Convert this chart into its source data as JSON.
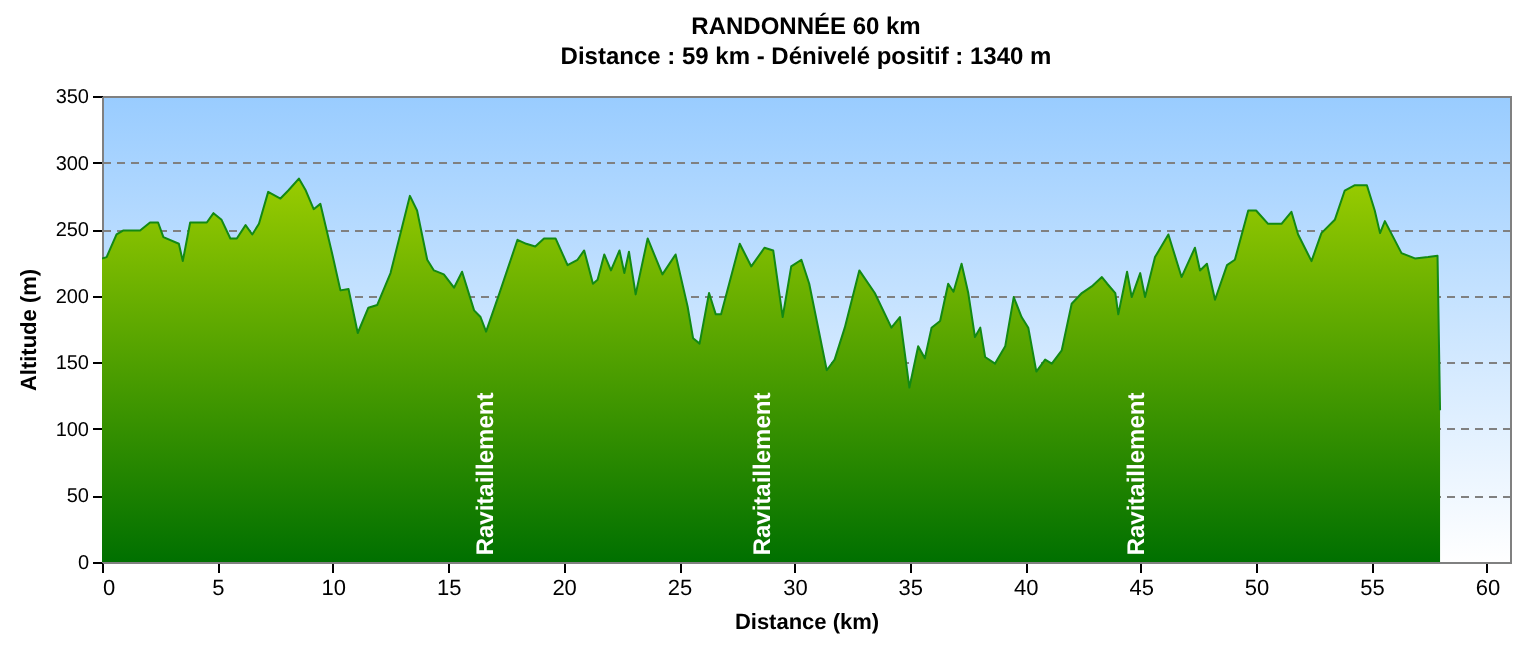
{
  "chart_data": {
    "type": "area",
    "title": "RANDONNÉE 60 km",
    "subtitle": "Distance : 59 km - Dénivelé positif : 1340 m",
    "xlabel": "Distance (km)",
    "ylabel": "Altitude (m)",
    "xlim": [
      0,
      61
    ],
    "xticks": [
      0,
      5,
      10,
      15,
      20,
      25,
      30,
      35,
      40,
      45,
      50,
      55,
      60
    ],
    "ylim": [
      0,
      350
    ],
    "yticks": [
      0,
      50,
      100,
      150,
      200,
      250,
      300,
      350
    ],
    "grid": "y",
    "annotations": [
      {
        "text": "Ravitaillement",
        "x": 16.6,
        "y": 5
      },
      {
        "text": "Ravitaillement",
        "x": 28.6,
        "y": 5
      },
      {
        "text": "Ravitaillement",
        "x": 44.8,
        "y": 5
      }
    ],
    "series": [
      {
        "color": "#99cc00",
        "x": [
          0,
          0.2,
          0.63,
          0.93,
          1.65,
          2.08,
          2.43,
          2.66,
          3.33,
          3.5,
          3.82,
          4.54,
          4.83,
          5.18,
          5.56,
          5.84,
          6.22,
          6.51,
          6.8,
          7.2,
          7.73,
          8.07,
          8.53,
          8.83,
          9.17,
          9.46,
          9.98,
          10.33,
          10.68,
          11.08,
          11.54,
          11.92,
          12.5,
          13.34,
          13.65,
          14.09,
          14.38,
          14.81,
          15.25,
          15.6,
          16.12,
          16.4,
          16.64,
          17.22,
          18.0,
          18.38,
          18.77,
          19.15,
          19.65,
          20.17,
          20.6,
          20.89,
          21.27,
          21.47,
          21.76,
          22.05,
          22.42,
          22.63,
          22.83,
          23.12,
          23.64,
          24.28,
          24.85,
          25.37,
          25.61,
          25.89,
          26.3,
          26.59,
          26.82,
          27.63,
          28.13,
          28.7,
          29.08,
          29.49,
          29.86,
          30.3,
          30.64,
          31.4,
          31.74,
          32.18,
          32.81,
          33.48,
          34.2,
          34.57,
          34.98,
          35.36,
          35.65,
          35.94,
          36.31,
          36.66,
          36.89,
          37.24,
          37.53,
          37.82,
          38.05,
          38.26,
          38.69,
          39.13,
          39.5,
          39.84,
          40.13,
          40.48,
          40.86,
          41.15,
          41.58,
          42.01,
          42.45,
          42.88,
          43.32,
          43.55,
          43.9,
          44.03,
          44.41,
          44.61,
          44.98,
          45.19,
          45.62,
          46.2,
          46.77,
          47.35,
          47.57,
          47.87,
          48.22,
          48.74,
          49.08,
          49.66,
          50.0,
          50.52,
          51.1,
          51.53,
          51.82,
          52.4,
          52.83,
          53.41,
          53.84,
          54.28,
          54.8,
          55.14,
          55.37,
          55.58,
          56.3,
          56.88,
          57.45,
          57.86,
          57.97
        ],
        "values": [
          228,
          229,
          246,
          249,
          249,
          255,
          255,
          244,
          239,
          226,
          255,
          255,
          262,
          257,
          243,
          243,
          253,
          246,
          254,
          278,
          273,
          279,
          288,
          279,
          265,
          269,
          231,
          204,
          205,
          172,
          191,
          193,
          217,
          275,
          264,
          227,
          219,
          216,
          206,
          218,
          189,
          184,
          173,
          202,
          242,
          239,
          237,
          243,
          243,
          223,
          227,
          234,
          209,
          212,
          231,
          219,
          234,
          217,
          233,
          201,
          243,
          216,
          231,
          192,
          168,
          164,
          202,
          186,
          186,
          239,
          222,
          236,
          234,
          184,
          222,
          227,
          209,
          144,
          152,
          176,
          219,
          202,
          176,
          184,
          131,
          162,
          153,
          176,
          181,
          209,
          203,
          224,
          202,
          169,
          176,
          154,
          149,
          162,
          199,
          184,
          176,
          143,
          152,
          149,
          159,
          194,
          202,
          207,
          214,
          209,
          202,
          186,
          218,
          199,
          217,
          199,
          229,
          246,
          214,
          236,
          219,
          224,
          197,
          223,
          227,
          264,
          264,
          254,
          254,
          263,
          246,
          226,
          247,
          257,
          279,
          283,
          283,
          264,
          247,
          256,
          232,
          228,
          229,
          230,
          114
        ]
      }
    ]
  }
}
